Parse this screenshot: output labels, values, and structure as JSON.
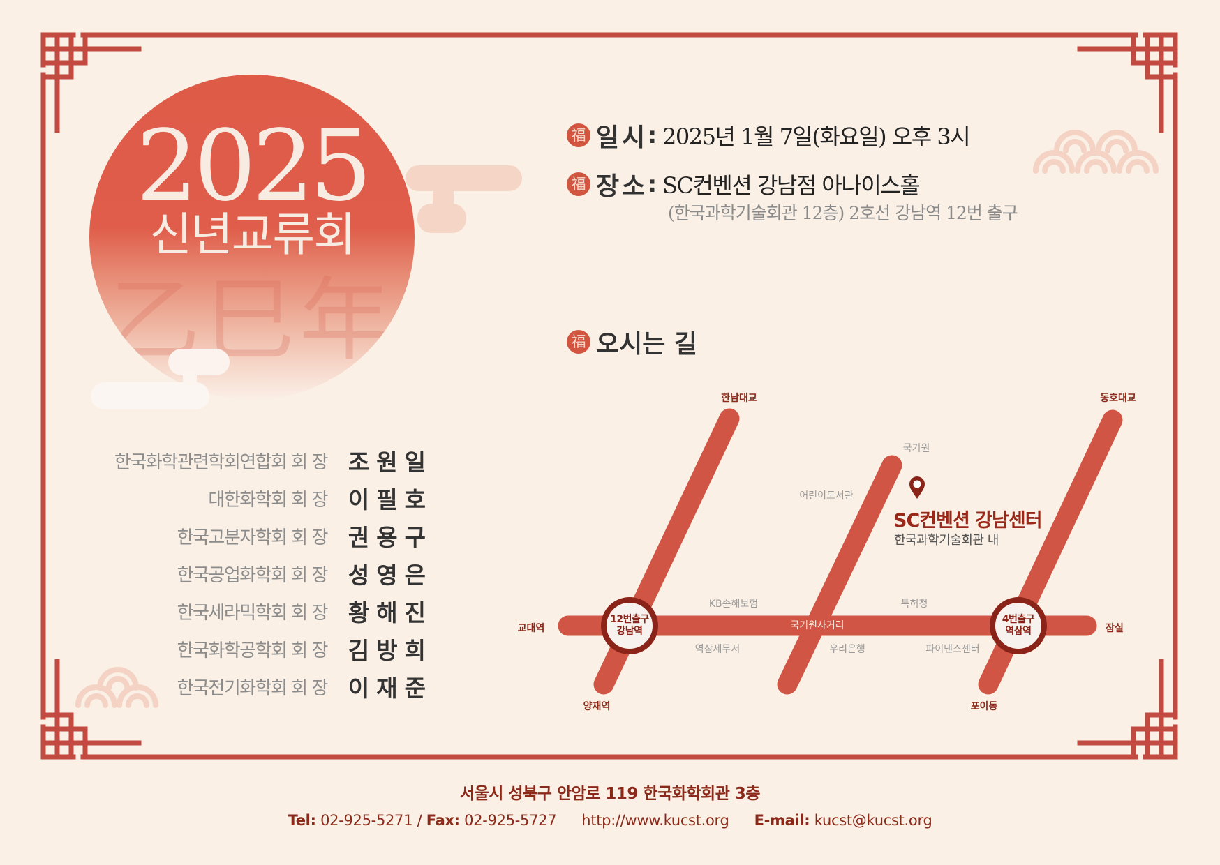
{
  "colors": {
    "background": "#faf0e6",
    "frame": "#c24a40",
    "accent": "#d2553f",
    "map_line": "#d05544",
    "station_ring": "#8b2418",
    "footer_text": "#8b2a1a",
    "ornament": "#f4d3c4"
  },
  "hero": {
    "year": "2025",
    "event_title": "신년교류회",
    "zodiac": "乙巳年"
  },
  "info": {
    "icon_char": "福",
    "rows": [
      {
        "label": "일시",
        "value": "2025년 1월 7일(화요일) 오후 3시"
      },
      {
        "label": "장소",
        "value": "SC컨벤션 강남점 아나이스홀"
      }
    ],
    "place_detail": "(한국과학기술회관 12층) 2호선 강남역 12번 출구"
  },
  "hosts": [
    {
      "org": "한국화학관련학회연합회 회 장",
      "name": "조원일"
    },
    {
      "org": "대한화학회 회 장",
      "name": "이필호"
    },
    {
      "org": "한국고분자학회 회 장",
      "name": "권용구"
    },
    {
      "org": "한국공업화학회 회 장",
      "name": "성영은"
    },
    {
      "org": "한국세라믹학회 회 장",
      "name": "황해진"
    },
    {
      "org": "한국화학공학회 회 장",
      "name": "김방희"
    },
    {
      "org": "한국전기화학회 회 장",
      "name": "이재준"
    }
  ],
  "directions": {
    "title": "오시는 길",
    "venue": "SC컨벤션 강남센터",
    "venue_sub": "한국과학기술회관 내",
    "stations": [
      {
        "line1": "12번출구",
        "line2": "강남역"
      },
      {
        "line1": "4번출구",
        "line2": "역삼역"
      }
    ],
    "road_labels": {
      "hannam": "한남대교",
      "dongho": "동호대교",
      "gyodae": "교대역",
      "jamsil": "잠실",
      "yangjae": "양재역",
      "poi": "포이동"
    },
    "landmarks": {
      "kukkiwon": "국기원",
      "library": "어린이도서관",
      "kb": "KB손해보험",
      "patent": "특허청",
      "intersection": "국기원사거리",
      "tax_office": "역삼세무서",
      "woori": "우리은행",
      "finance": "파이낸스센터"
    }
  },
  "footer": {
    "address": "서울시 성북구 안암로 119 한국화학회관 3층",
    "tel_label": "Tel:",
    "tel": "02-925-5271",
    "sep": "/",
    "fax_label": "Fax:",
    "fax": "02-925-5727",
    "website": "http://www.kucst.org",
    "email_label": "E-mail:",
    "email": "kucst@kucst.org"
  }
}
